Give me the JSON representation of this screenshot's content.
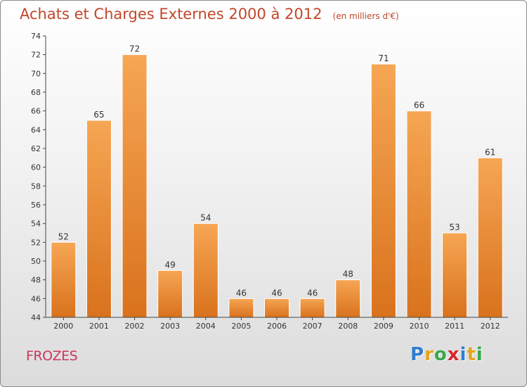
{
  "header": {
    "title": "Achats et Charges Externes 2000 à 2012",
    "subtitle": "(en milliers d'€)"
  },
  "footer": {
    "commune": "FROZES",
    "logo_letters": [
      "P",
      "r",
      "o",
      "x",
      "i",
      "t",
      "i"
    ],
    "logo_colors": [
      "#2f7fd0",
      "#e6a41a",
      "#3aa84a",
      "#d8262c",
      "#2f7fd0",
      "#e6a41a",
      "#3aa84a"
    ]
  },
  "chart_data": {
    "type": "bar",
    "categories": [
      "2000",
      "2001",
      "2002",
      "2003",
      "2004",
      "2005",
      "2006",
      "2007",
      "2008",
      "2009",
      "2010",
      "2011",
      "2012"
    ],
    "values": [
      52,
      65,
      72,
      49,
      54,
      46,
      46,
      46,
      48,
      71,
      66,
      53,
      61
    ],
    "data_labels": [
      "52",
      "65",
      "72",
      "49",
      "54",
      "46",
      "46",
      "46",
      "48",
      "71",
      "66",
      "53",
      "61"
    ],
    "title": "Achats et Charges Externes 2000 à 2012",
    "subtitle": "(en milliers d'€)",
    "xlabel": "",
    "ylabel": "",
    "ylim": [
      44,
      74
    ],
    "yticks": [
      44,
      46,
      48,
      50,
      52,
      54,
      56,
      58,
      60,
      62,
      64,
      66,
      68,
      70,
      72,
      74
    ],
    "grid": false,
    "colors": {
      "bar_top": "#f6a654",
      "bar_bottom": "#d9721d",
      "axis": "#444444"
    }
  }
}
